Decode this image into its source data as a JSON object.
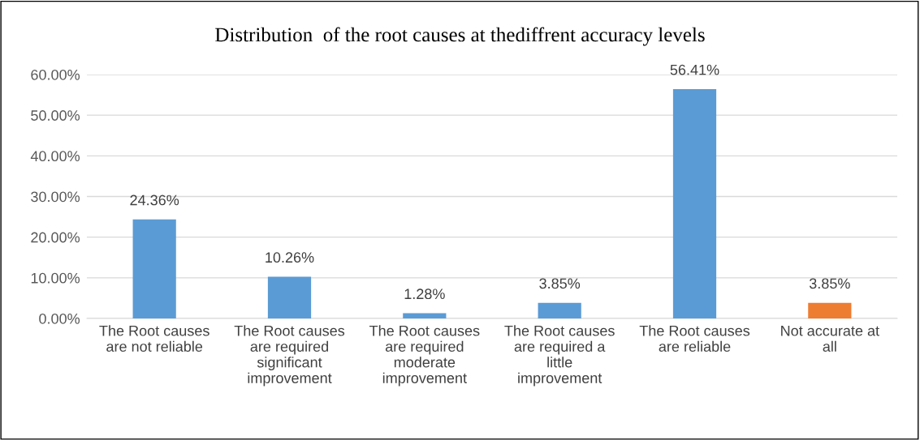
{
  "chart_data": {
    "type": "bar",
    "title": "Distribution  of the root causes at thediffrent accuracy levels",
    "categories": [
      "The Root causes\nare not reliable",
      "The Root causes\nare required\nsignificant\nimprovement",
      "The Root causes\nare required\nmoderate\nimprovement",
      "The Root causes\nare required a\nlittle\nimprovement",
      "The Root causes\nare reliable",
      "Not accurate at\nall"
    ],
    "values": [
      24.36,
      10.26,
      1.28,
      3.85,
      56.41,
      3.85
    ],
    "colors": [
      "#5b9bd5",
      "#5b9bd5",
      "#5b9bd5",
      "#5b9bd5",
      "#5b9bd5",
      "#ed7d31"
    ],
    "value_labels": [
      "24.36%",
      "10.26%",
      "1.28%",
      "3.85%",
      "56.41%",
      "3.85%"
    ],
    "ylim": [
      0,
      60
    ],
    "yticks": [
      {
        "value": 0,
        "label": "0.00%"
      },
      {
        "value": 10,
        "label": "10.00%"
      },
      {
        "value": 20,
        "label": "20.00%"
      },
      {
        "value": 30,
        "label": "30.00%"
      },
      {
        "value": 40,
        "label": "40.00%"
      },
      {
        "value": 50,
        "label": "50.00%"
      },
      {
        "value": 60,
        "label": "60.00%"
      }
    ],
    "grid": "y"
  }
}
